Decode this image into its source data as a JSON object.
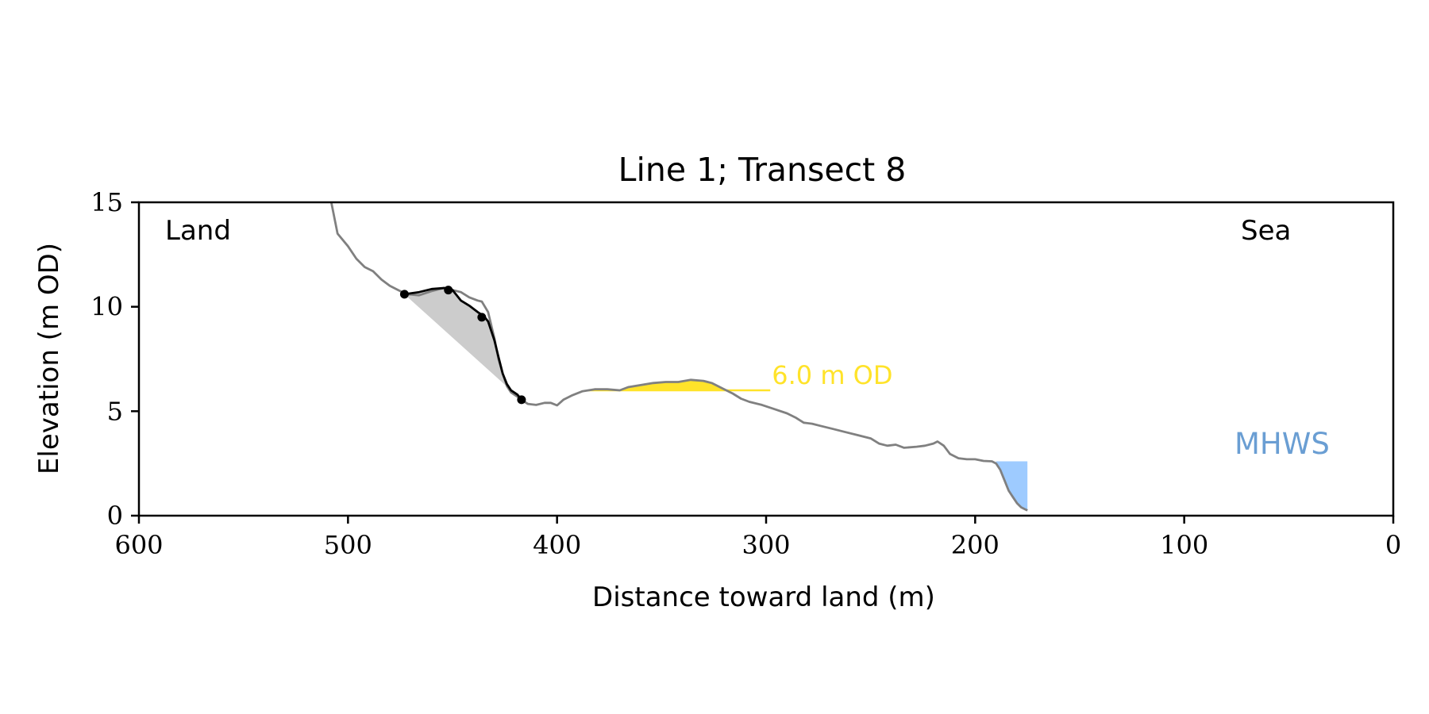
{
  "chart_data": {
    "type": "line",
    "title": "Line 1; Transect 8",
    "xlabel": "Distance toward land (m)",
    "ylabel": "Elevation (m OD)",
    "xlim": [
      600,
      0
    ],
    "ylim": [
      0,
      15
    ],
    "x_ticks": [
      600,
      500,
      400,
      300,
      200,
      100,
      0
    ],
    "y_ticks": [
      0,
      5,
      10,
      15
    ],
    "x_tick_labels": [
      "600",
      "500",
      "400",
      "300",
      "200",
      "100",
      "0"
    ],
    "y_tick_labels": [
      "0",
      "5",
      "10",
      "15"
    ],
    "grid": false,
    "annotations": {
      "land_label": "Land",
      "sea_label": "Sea",
      "mhws_label": "MHWS",
      "level_label": "6.0 m OD"
    },
    "level_line": {
      "elevation": 6.0,
      "x_start": 385,
      "x_end": 298
    },
    "mhws": {
      "elevation": 2.6,
      "x_start": 190,
      "x_end": 175
    },
    "profile": {
      "x": [
        508,
        505,
        500,
        496,
        492,
        488,
        484,
        480,
        476,
        472,
        466,
        460,
        454,
        450,
        446,
        442,
        438,
        436,
        433,
        430,
        428,
        426,
        424,
        422,
        419,
        417,
        414,
        410,
        406,
        403,
        400,
        397,
        393,
        388,
        382,
        376,
        370,
        366,
        360,
        354,
        348,
        342,
        336,
        330,
        326,
        320,
        316,
        312,
        308,
        302,
        296,
        290,
        286,
        282,
        278,
        274,
        268,
        262,
        256,
        250,
        246,
        242,
        238,
        234,
        228,
        224,
        220,
        218,
        215,
        212,
        208,
        204,
        200,
        196,
        192,
        190,
        188,
        186,
        184,
        182,
        180,
        178,
        176,
        175
      ],
      "y": [
        15.0,
        13.5,
        12.9,
        12.3,
        11.9,
        11.7,
        11.3,
        11.0,
        10.8,
        10.6,
        10.55,
        10.75,
        10.9,
        10.8,
        10.7,
        10.45,
        10.3,
        10.25,
        9.75,
        8.5,
        7.5,
        6.8,
        6.2,
        5.9,
        5.7,
        5.55,
        5.35,
        5.3,
        5.4,
        5.4,
        5.28,
        5.55,
        5.75,
        5.95,
        6.05,
        6.05,
        6.0,
        6.15,
        6.25,
        6.35,
        6.4,
        6.4,
        6.5,
        6.45,
        6.35,
        6.05,
        5.85,
        5.6,
        5.45,
        5.3,
        5.1,
        4.9,
        4.7,
        4.45,
        4.4,
        4.3,
        4.15,
        4.0,
        3.85,
        3.7,
        3.45,
        3.35,
        3.4,
        3.25,
        3.3,
        3.35,
        3.45,
        3.55,
        3.35,
        2.95,
        2.75,
        2.7,
        2.7,
        2.62,
        2.6,
        2.5,
        2.2,
        1.7,
        1.2,
        0.9,
        0.6,
        0.4,
        0.3,
        0.25
      ]
    },
    "feature": {
      "x": [
        473,
        466,
        460,
        454,
        450,
        446,
        442,
        438,
        435,
        433,
        430,
        428,
        426,
        424,
        422,
        419,
        417
      ],
      "y": [
        10.6,
        10.7,
        10.85,
        10.9,
        10.8,
        10.3,
        10.05,
        9.75,
        9.55,
        9.3,
        8.4,
        7.6,
        6.8,
        6.3,
        6.0,
        5.8,
        5.55
      ],
      "markers_x": [
        473,
        452,
        436,
        417
      ],
      "markers_y": [
        10.6,
        10.8,
        9.5,
        5.55
      ]
    },
    "colors": {
      "profile": "#808080",
      "feature": "#000000",
      "shaded_area": "#cccccc",
      "level": "#ffe32a",
      "mhws_fill": "#9ecbff",
      "mhws_text": "#6a9ed3"
    }
  }
}
